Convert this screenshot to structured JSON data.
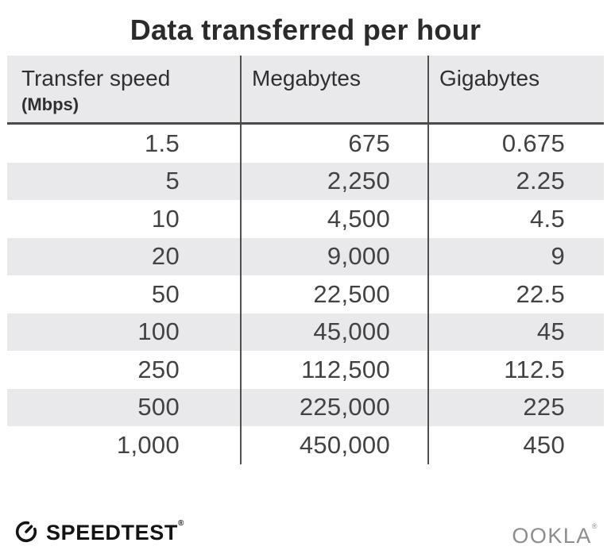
{
  "title": "Data transferred per hour",
  "table": {
    "header": {
      "col1_label": "Transfer speed",
      "col1_sublabel": "(Mbps)",
      "col2_label": "Megabytes",
      "col3_label": "Gigabytes"
    },
    "rows": [
      [
        "1.5",
        "675",
        "0.675"
      ],
      [
        "5",
        "2,250",
        "2.25"
      ],
      [
        "10",
        "4,500",
        "4.5"
      ],
      [
        "20",
        "9,000",
        "9"
      ],
      [
        "50",
        "22,500",
        "22.5"
      ],
      [
        "100",
        "45,000",
        "45"
      ],
      [
        "250",
        "112,500",
        "112.5"
      ],
      [
        "500",
        "225,000",
        "225"
      ],
      [
        "1,000",
        "450,000",
        "450"
      ]
    ]
  },
  "chart_data": {
    "type": "table",
    "title": "Data transferred per hour",
    "columns": [
      "Transfer speed (Mbps)",
      "Megabytes",
      "Gigabytes"
    ],
    "rows": [
      [
        1.5,
        675,
        0.675
      ],
      [
        5,
        2250,
        2.25
      ],
      [
        10,
        4500,
        4.5
      ],
      [
        20,
        9000,
        9
      ],
      [
        50,
        22500,
        22.5
      ],
      [
        100,
        45000,
        45
      ],
      [
        250,
        112500,
        112.5
      ],
      [
        500,
        225000,
        225
      ],
      [
        1000,
        450000,
        450
      ]
    ]
  },
  "footer": {
    "speedtest": {
      "label": "SPEEDTEST",
      "trademark": "®",
      "icon": "gauge-icon"
    },
    "ookla": {
      "label": "OOKLA",
      "trademark": "®"
    }
  },
  "colors": {
    "header_bg": "#e9e9ec",
    "stripe_bg": "#e9e9ec",
    "column_divider": "#4f4f4f",
    "header_underline": "#4a4a4a",
    "title_text": "#2b2b2b",
    "number_text": "#424242",
    "ookla_gray": "#8d8d8d",
    "speedtest_black": "#141414"
  }
}
